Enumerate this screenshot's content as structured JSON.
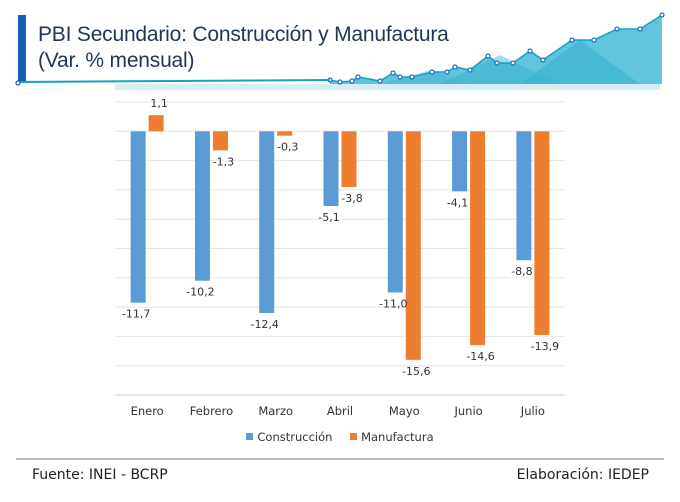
{
  "header": {
    "title_line1": "PBI Secundario: Construcción y Manufactura",
    "title_line2": "(Var. % mensual)",
    "accent_color": "#1560b0",
    "deco_color": "#12a3c8"
  },
  "chart_data": {
    "type": "bar",
    "title": "PBI Secundario: Construcción y Manufactura (Var. % mensual)",
    "xlabel": "",
    "ylabel": "",
    "categories": [
      "Enero",
      "Febrero",
      "Marzo",
      "Abril",
      "Mayo",
      "Junio",
      "Julio"
    ],
    "series": [
      {
        "name": "Construcción",
        "color": "#5b9bd5",
        "values": [
          -11.7,
          -10.2,
          -12.4,
          -5.1,
          -11.0,
          -4.1,
          -8.8
        ],
        "labels": [
          "-11,7",
          "-10,2",
          "-12,4",
          "-5,1",
          "-11,0",
          "-4,1",
          "-8,8"
        ]
      },
      {
        "name": "Manufactura",
        "color": "#ed7d31",
        "values": [
          1.1,
          -1.3,
          -0.3,
          -3.8,
          -15.6,
          -14.6,
          -13.9
        ],
        "labels": [
          "1,1",
          "-1,3",
          "-0,3",
          "-3,8",
          "-15,6",
          "-14,6",
          "-13,9"
        ]
      }
    ],
    "ylim": [
      -18,
      2
    ],
    "y_gridline_step": 2,
    "grid": true,
    "y_tick_labels_shown": false,
    "legend_position": "bottom"
  },
  "footer": {
    "source": "Fuente: INEI -  BCRP",
    "credit": "Elaboración: IEDEP"
  }
}
